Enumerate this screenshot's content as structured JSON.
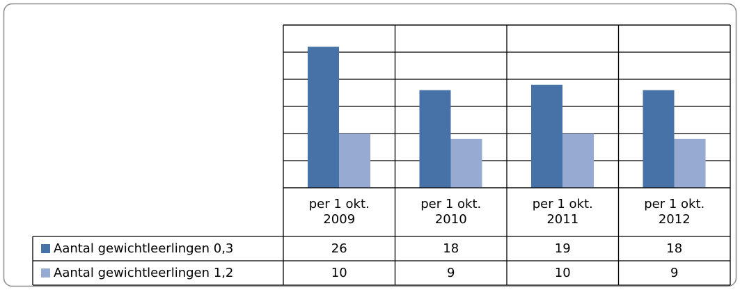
{
  "chart_data": {
    "type": "bar",
    "categories": [
      "per 1 okt. 2009",
      "per 1 okt. 2010",
      "per 1 okt. 2011",
      "per 1 okt. 2012"
    ],
    "series": [
      {
        "name": "Aantal gewichtleerlingen 0,3",
        "color": "#4672a8",
        "values": [
          26,
          18,
          19,
          18
        ]
      },
      {
        "name": "Aantal gewichtleerlingen 1,2",
        "color": "#97abd2",
        "values": [
          10,
          9,
          10,
          9
        ]
      }
    ],
    "ylim": [
      0,
      30
    ],
    "yticks": [
      0,
      5,
      10,
      15,
      20,
      25,
      30
    ],
    "grid": true
  }
}
